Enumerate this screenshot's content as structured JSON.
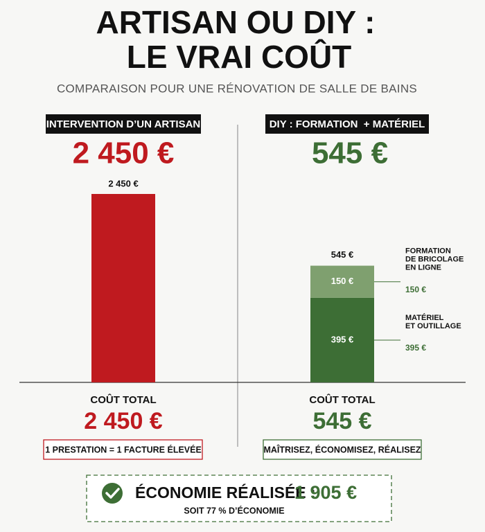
{
  "header": {
    "title": [
      "ARTISAN OU DIY :",
      "LE VRAI COÛT"
    ],
    "subtitle": "COMPARAISON POUR UNE RÉNOVATION DE SALLE DE BAINS"
  },
  "chart_data": [
    {
      "type": "bar",
      "title": "INTERVENTION D’UN ARTISAN",
      "headline": "2 450 €",
      "values": [
        2450
      ],
      "value_labels": [
        "2 450 €"
      ],
      "color": "#bf1a1f",
      "ylim": [
        0,
        2450
      ],
      "footer_label": "COÛT TOTAL",
      "footer_value": "2 450 €",
      "note": "1 PRESTATION = 1 FACTURE ÉLEVÉE"
    },
    {
      "type": "stacked-bar",
      "title": "DIY : FORMATION  + MATÉRIEL",
      "headline": "545 €",
      "ylim": [
        0,
        880
      ],
      "total_label": "545 €",
      "series": [
        {
          "name": [
            "MATÉRIEL",
            "ET OUTILLAGE"
          ],
          "color": "#3d6e35",
          "values": [
            395
          ],
          "value_labels": [
            "395 €"
          ]
        },
        {
          "name": [
            "FORMATION",
            "DE BRICOLAGE",
            "EN LIGNE"
          ],
          "color": "#7fa06f",
          "values": [
            150
          ],
          "value_labels": [
            "150 €"
          ]
        }
      ],
      "footer_label": "COÛT TOTAL",
      "footer_value": "545 €",
      "note": "MAÎTRISEZ, ÉCONOMISEZ, RÉALISEZ"
    }
  ],
  "savings": {
    "label": "ÉCONOMIE RÉALISÉE :",
    "value": "1 905 €",
    "note": "SOIT 77 % D’ÉCONOMIE"
  }
}
